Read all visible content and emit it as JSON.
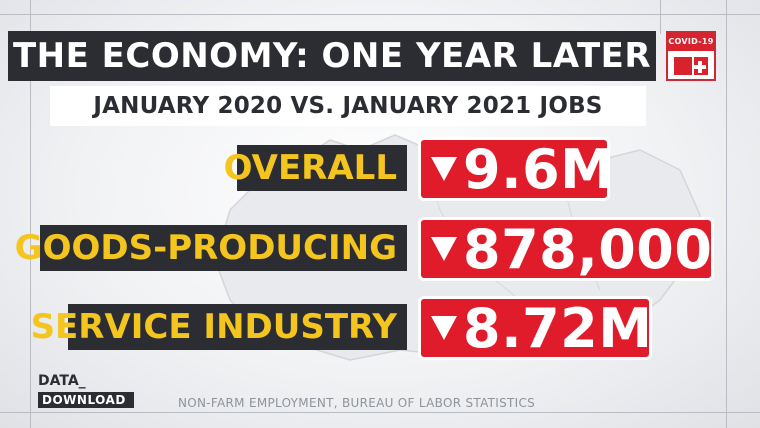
{
  "header": {
    "title": "THE ECONOMY: ONE YEAR LATER",
    "subtitle": "JANUARY 2020 VS. JANUARY 2021 JOBS"
  },
  "badge": {
    "label": "COVID-19",
    "icon": "covid-19-badge-icon"
  },
  "rows": [
    {
      "label": "OVERALL",
      "value": "9.6M",
      "direction": "down"
    },
    {
      "label": "GOODS-PRODUCING",
      "value": "878,000",
      "direction": "down"
    },
    {
      "label": "SERVICE INDUSTRY",
      "value": "8.72M",
      "direction": "down"
    }
  ],
  "footer": {
    "logo_top": "DATA_",
    "logo_bottom": "DOWNLOAD",
    "source": "NON-FARM EMPLOYMENT, BUREAU OF  LABOR STATISTICS"
  },
  "colors": {
    "dark_bar": "#2b2d33",
    "label_text": "#f4c51e",
    "value_bg": "#e01b2a"
  }
}
